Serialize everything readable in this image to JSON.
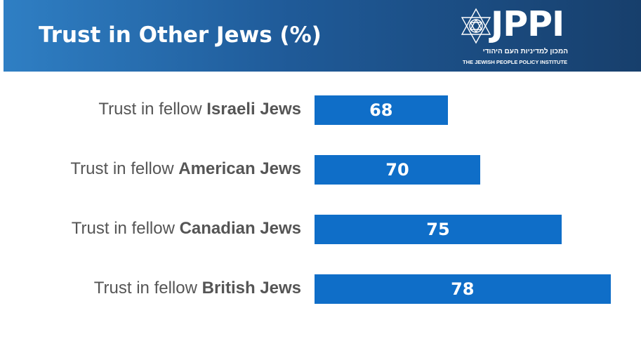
{
  "header": {
    "title": "Trust in Other Jews (%)",
    "logo": {
      "word": "JPPI",
      "hebrew": "המכון למדיניות העם היהודי",
      "english": "THE JEWISH PEOPLE POLICY INSTITUTE",
      "icon": "star-of-david-icon"
    }
  },
  "colors": {
    "bar": "#0f6ec8",
    "header_start": "#2f7fc4",
    "header_end": "#173f6c",
    "label": "#555555"
  },
  "chart_data": {
    "type": "bar",
    "orientation": "horizontal",
    "title": "Trust in Other Jews (%)",
    "categories": [
      {
        "prefix": "Trust in fellow ",
        "bold": "Israeli Jews"
      },
      {
        "prefix": "Trust in fellow ",
        "bold": "American Jews"
      },
      {
        "prefix": "Trust in fellow ",
        "bold": "Canadian Jews"
      },
      {
        "prefix": "Trust in fellow ",
        "bold": "British Jews"
      }
    ],
    "values": [
      68,
      70,
      75,
      78
    ],
    "value_labels": [
      "68",
      "70",
      "75",
      "78"
    ],
    "xlim": [
      60,
      78
    ],
    "grid": false,
    "legend": "none"
  }
}
